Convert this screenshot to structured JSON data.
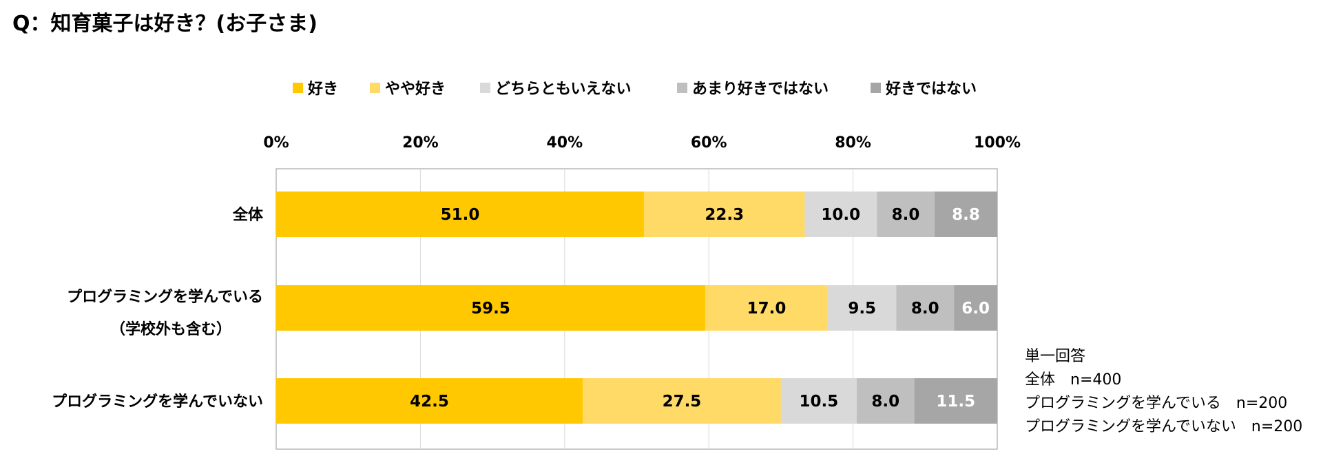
{
  "title": "Q：知育菓子は好き？(お子さま)",
  "note": {
    "lines": [
      "単一回答",
      "全体　n=400",
      "プログラミングを学んでいる　n=200",
      "プログラミングを学んでいない　n=200"
    ]
  },
  "chart_data": {
    "type": "bar",
    "orientation": "horizontal",
    "stacked": "percent",
    "title": "Q：知育菓子は好き？(お子さま)",
    "categories": [
      {
        "lines": [
          "全体"
        ]
      },
      {
        "lines": [
          "プログラミングを学んでいる",
          "（学校外も含む）"
        ]
      },
      {
        "lines": [
          "プログラミングを学んでいない"
        ]
      }
    ],
    "series": [
      {
        "name": "好き",
        "color": "#FFC800",
        "label_color": "#000000",
        "values": [
          51.0,
          59.5,
          42.5
        ]
      },
      {
        "name": "やや好き",
        "color": "#FFDA66",
        "label_color": "#000000",
        "values": [
          22.3,
          17.0,
          27.5
        ]
      },
      {
        "name": "どちらともいえない",
        "color": "#D9D9D9",
        "label_color": "#000000",
        "values": [
          10.0,
          9.5,
          10.5
        ]
      },
      {
        "name": "あまり好きではない",
        "color": "#BFBFBF",
        "label_color": "#000000",
        "values": [
          8.0,
          8.0,
          8.0
        ]
      },
      {
        "name": "好きではない",
        "color": "#A6A6A6",
        "label_color": "#FFFFFF",
        "values": [
          8.8,
          6.0,
          11.5
        ]
      }
    ],
    "xlim": [
      0,
      100
    ],
    "xticks": [
      "0%",
      "20%",
      "40%",
      "60%",
      "80%",
      "100%"
    ],
    "xtick_values": [
      0,
      20,
      40,
      60,
      80,
      100
    ],
    "gridlines": true,
    "legend_position": "top"
  }
}
